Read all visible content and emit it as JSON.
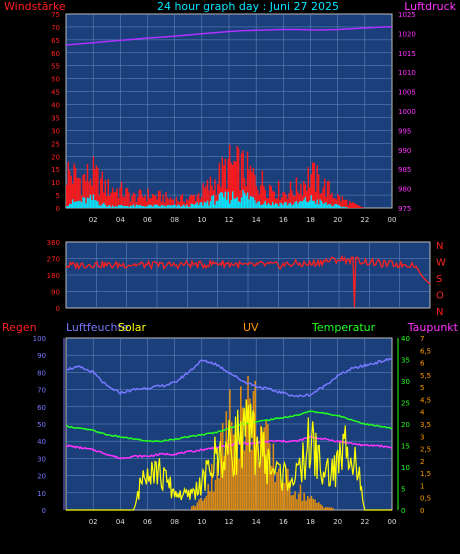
{
  "header": {
    "left_title": "Windstärke",
    "center_title": "24 hour graph day : Juni 27 2025",
    "right_title": "Luftdruck"
  },
  "colors": {
    "plot_bg": "#1a3f7a",
    "grid": "#6a8fc8",
    "wind": "#ff1a1a",
    "gust": "#00e5ff",
    "pressure": "#b030ff",
    "direction": "#ff2020",
    "humidity": "#7777ff",
    "solar": "#ffff00",
    "uv": "#ff9900",
    "temperature": "#22ff22",
    "dewpoint": "#ff33ff",
    "rain": "#cc2200"
  },
  "x_tick_labels": [
    "02",
    "04",
    "06",
    "08",
    "10",
    "12",
    "14",
    "16",
    "18",
    "20",
    "22",
    "00"
  ],
  "panel3_header": {
    "regen": "Regen",
    "luftfeuchte": "Luftfeuchte",
    "solar": "Solar",
    "uv": "UV",
    "temperatur": "Temperatur",
    "taupunkt": "Taupunkt"
  },
  "direction_letters": [
    "N",
    "W",
    "S",
    "O",
    "N"
  ],
  "chart_data": [
    {
      "type": "bar",
      "title": "24 hour graph day : Juni 27 2025",
      "axes": {
        "left": {
          "label": "Windstärke",
          "range": [
            0,
            75
          ],
          "ticks": [
            0,
            5,
            10,
            15,
            20,
            25,
            30,
            35,
            40,
            45,
            50,
            55,
            60,
            65,
            70,
            75
          ]
        },
        "right": {
          "label": "Luftdruck",
          "range": [
            975,
            1025
          ],
          "ticks": [
            975,
            980,
            985,
            990,
            995,
            1000,
            1005,
            1010,
            1015,
            1020,
            1025
          ]
        }
      },
      "x_hours": [
        0,
        1,
        2,
        3,
        4,
        5,
        6,
        7,
        8,
        9,
        10,
        11,
        12,
        13,
        14,
        15,
        16,
        17,
        18,
        19,
        20,
        21,
        22,
        23,
        24
      ],
      "series": [
        {
          "name": "Windstärke",
          "kind": "bars",
          "axis": "left",
          "values": [
            17,
            13,
            15,
            9,
            8,
            5,
            6,
            5,
            4,
            4,
            7,
            12,
            19,
            18,
            13,
            10,
            7,
            9,
            15,
            10,
            5,
            2,
            0,
            0,
            0
          ]
        },
        {
          "name": "Wind",
          "kind": "bars",
          "axis": "left",
          "values": [
            2,
            3,
            4,
            1,
            1,
            1,
            1,
            1,
            1,
            1,
            2,
            4,
            5,
            6,
            4,
            2,
            2,
            2,
            4,
            2,
            1,
            0,
            0,
            0,
            0
          ]
        },
        {
          "name": "Luftdruck",
          "kind": "line",
          "axis": "right",
          "values": [
            1017,
            1017.3,
            1017.6,
            1017.9,
            1018.2,
            1018.5,
            1018.8,
            1019,
            1019.3,
            1019.6,
            1019.9,
            1020.2,
            1020.5,
            1020.7,
            1020.8,
            1020.9,
            1021,
            1021,
            1020.9,
            1020.9,
            1021,
            1021.2,
            1021.4,
            1021.6,
            1021.7
          ]
        }
      ]
    },
    {
      "type": "line",
      "axes": {
        "left": {
          "range": [
            0,
            360
          ],
          "ticks": [
            0,
            90,
            180,
            270,
            360
          ]
        }
      },
      "x_hours": [
        0,
        1,
        2,
        3,
        4,
        5,
        6,
        7,
        8,
        9,
        10,
        11,
        12,
        13,
        14,
        15,
        16,
        17,
        18,
        19,
        20,
        21,
        22,
        23,
        23.5,
        24
      ],
      "series": [
        {
          "name": "Windrichtung",
          "values": [
            230,
            235,
            240,
            232,
            238,
            236,
            234,
            233,
            240,
            235,
            245,
            240,
            230,
            238,
            232,
            242,
            238,
            255,
            265,
            262,
            250,
            240,
            238,
            238,
            170,
            130
          ]
        }
      ]
    },
    {
      "type": "line",
      "axes": {
        "rain": {
          "label": "Regen",
          "range": [
            0,
            100
          ],
          "ticks": [
            0,
            10,
            20,
            30,
            40,
            50,
            60,
            70,
            80,
            90,
            100
          ]
        },
        "humidity": {
          "label": "Luftfeuchte",
          "range": [
            0,
            100
          ]
        },
        "temperature": {
          "label": "Temperatur",
          "range": [
            0,
            40
          ],
          "ticks": [
            0,
            5,
            10,
            15,
            20,
            25,
            30,
            35,
            40
          ]
        },
        "dewpoint": {
          "label": "Taupunkt",
          "range": [
            0,
            7
          ],
          "ticks": [
            0,
            0.5,
            1,
            1.5,
            2,
            2.5,
            3,
            3.5,
            4,
            4.5,
            5,
            5.5,
            6,
            6.5,
            7
          ]
        }
      },
      "x_hours": [
        0,
        1,
        2,
        3,
        4,
        5,
        6,
        7,
        8,
        9,
        10,
        11,
        12,
        13,
        14,
        15,
        16,
        17,
        18,
        19,
        20,
        21,
        22,
        23,
        24
      ],
      "series": [
        {
          "name": "Luftfeuchte",
          "axis": "rain",
          "values": [
            82,
            83,
            80,
            72,
            68,
            70,
            71,
            72,
            74,
            80,
            87,
            85,
            80,
            75,
            72,
            70,
            68,
            66,
            67,
            72,
            78,
            82,
            84,
            86,
            88
          ]
        },
        {
          "name": "Temperatur",
          "axis": "temperature",
          "values": [
            19.5,
            19,
            18.5,
            17.5,
            17,
            16.5,
            16,
            16,
            16.5,
            17,
            17.5,
            18,
            19,
            20,
            20.5,
            21,
            21.5,
            22,
            23,
            22.5,
            22,
            21,
            20,
            19.5,
            19
          ]
        },
        {
          "name": "Taupunkt",
          "axis": "temperature",
          "values": [
            15,
            14.5,
            14,
            13,
            12,
            12.5,
            12.5,
            13,
            13,
            13.5,
            14,
            14.5,
            15,
            15.5,
            15.5,
            16,
            16,
            16,
            17,
            16.5,
            16,
            15.5,
            15,
            15,
            14.5
          ]
        },
        {
          "name": "Solar",
          "axis": "rain",
          "values": [
            0,
            0,
            0,
            0,
            0,
            0,
            30,
            20,
            10,
            8,
            15,
            30,
            35,
            45,
            40,
            25,
            20,
            18,
            40,
            20,
            25,
            45,
            0,
            0,
            0
          ]
        },
        {
          "name": "UV",
          "axis": "dewpoint",
          "values": [
            0,
            0,
            0,
            0,
            0,
            0,
            0,
            0,
            0,
            0,
            0.5,
            2,
            4,
            5,
            4.5,
            2.5,
            1.5,
            1,
            0.5,
            0.2,
            0,
            0,
            0,
            0,
            0
          ]
        }
      ]
    }
  ]
}
